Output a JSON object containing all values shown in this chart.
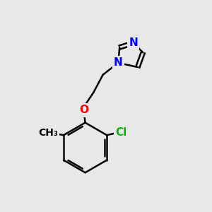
{
  "background_color": "#e8e8e8",
  "bond_color": "#000000",
  "bond_width": 1.8,
  "atom_colors": {
    "O": "#ff0000",
    "Cl": "#00bb00",
    "N": "#0000ff",
    "C": "#000000"
  },
  "font_size_atom": 11,
  "figsize": [
    3.0,
    3.0
  ],
  "dpi": 100
}
